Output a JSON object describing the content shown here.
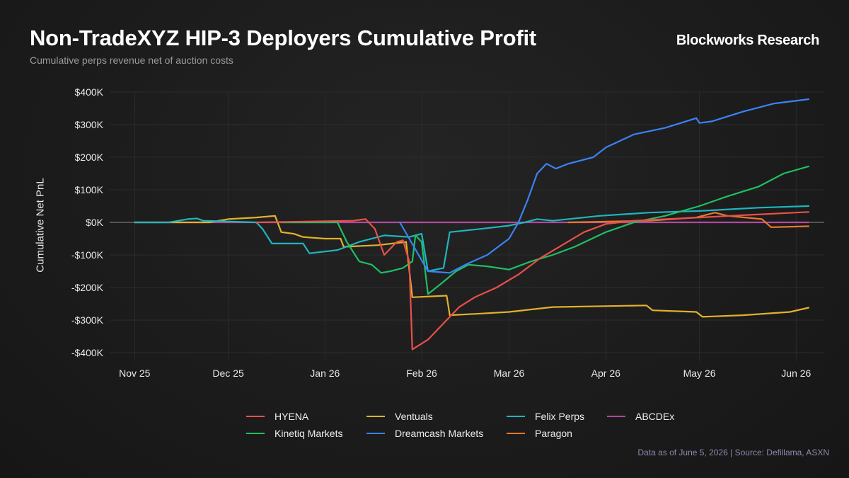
{
  "header": {
    "title": "Non-TradeXYZ HIP-3 Deployers Cumulative Profit",
    "subtitle": "Cumulative perps revenue net of auction costs",
    "brand": "Blockworks Research"
  },
  "footer": {
    "note": "Data as of June 5, 2026 | Source: Defillama, ASXN"
  },
  "chart_data": {
    "type": "line",
    "title": "Non-TradeXYZ HIP-3 Deployers Cumulative Profit",
    "subtitle": "Cumulative perps revenue net of auction costs",
    "xlabel": "",
    "ylabel": "Cumulative Net PnL",
    "ylim": [
      -400000,
      400000
    ],
    "yticks": [
      400000,
      300000,
      200000,
      100000,
      0,
      -100000,
      -200000,
      -300000,
      -400000
    ],
    "ytick_labels": [
      "$400K",
      "$300K",
      "$200K",
      "$100K",
      "$0K",
      "-$100K",
      "-$200K",
      "-$300K",
      "-$400K"
    ],
    "xlim": [
      "2025-10-24",
      "2026-06-10"
    ],
    "xticks": [
      "2025-11-01",
      "2025-12-01",
      "2026-01-01",
      "2026-02-01",
      "2026-03-01",
      "2026-04-01",
      "2026-05-01",
      "2026-06-01"
    ],
    "xtick_labels": [
      "Nov 25",
      "Dec 25",
      "Jan 26",
      "Feb 26",
      "Mar 26",
      "Apr 26",
      "May 26",
      "Jun 26"
    ],
    "grid": true,
    "zero_line": true,
    "legend_position": "bottom",
    "series": [
      {
        "name": "HYENA",
        "color": "#e8504a",
        "points": [
          [
            "2025-12-10",
            0
          ],
          [
            "2026-01-10",
            5000
          ],
          [
            "2026-01-14",
            10000
          ],
          [
            "2026-01-17",
            -20000
          ],
          [
            "2026-01-20",
            -100000
          ],
          [
            "2026-01-24",
            -60000
          ],
          [
            "2026-01-26",
            -55000
          ],
          [
            "2026-01-28",
            -120000
          ],
          [
            "2026-01-29",
            -390000
          ],
          [
            "2026-02-03",
            -360000
          ],
          [
            "2026-02-08",
            -310000
          ],
          [
            "2026-02-13",
            -260000
          ],
          [
            "2026-02-18",
            -230000
          ],
          [
            "2026-02-25",
            -200000
          ],
          [
            "2026-03-04",
            -160000
          ],
          [
            "2026-03-11",
            -110000
          ],
          [
            "2026-03-18",
            -70000
          ],
          [
            "2026-03-25",
            -30000
          ],
          [
            "2026-04-01",
            -5000
          ],
          [
            "2026-04-10",
            5000
          ],
          [
            "2026-05-01",
            15000
          ],
          [
            "2026-05-15",
            22000
          ],
          [
            "2026-06-01",
            30000
          ],
          [
            "2026-06-05",
            32000
          ]
        ]
      },
      {
        "name": "Ventuals",
        "color": "#e2b12a",
        "points": [
          [
            "2025-11-01",
            0
          ],
          [
            "2025-11-25",
            0
          ],
          [
            "2025-12-01",
            10000
          ],
          [
            "2025-12-10",
            15000
          ],
          [
            "2025-12-16",
            20000
          ],
          [
            "2025-12-18",
            -30000
          ],
          [
            "2025-12-22",
            -35000
          ],
          [
            "2025-12-25",
            -45000
          ],
          [
            "2026-01-01",
            -50000
          ],
          [
            "2026-01-06",
            -50000
          ],
          [
            "2026-01-07",
            -75000
          ],
          [
            "2026-01-18",
            -70000
          ],
          [
            "2026-01-27",
            -60000
          ],
          [
            "2026-01-29",
            -230000
          ],
          [
            "2026-02-09",
            -225000
          ],
          [
            "2026-02-10",
            -285000
          ],
          [
            "2026-02-20",
            -280000
          ],
          [
            "2026-03-01",
            -275000
          ],
          [
            "2026-03-15",
            -260000
          ],
          [
            "2026-04-14",
            -255000
          ],
          [
            "2026-04-16",
            -270000
          ],
          [
            "2026-04-30",
            -275000
          ],
          [
            "2026-05-02",
            -290000
          ],
          [
            "2026-05-15",
            -285000
          ],
          [
            "2026-05-30",
            -275000
          ],
          [
            "2026-06-05",
            -262000
          ]
        ]
      },
      {
        "name": "Felix Perps",
        "color": "#1fb5be",
        "points": [
          [
            "2025-11-01",
            0
          ],
          [
            "2025-11-12",
            0
          ],
          [
            "2025-11-18",
            10000
          ],
          [
            "2025-11-21",
            12000
          ],
          [
            "2025-11-23",
            5000
          ],
          [
            "2025-12-10",
            0
          ],
          [
            "2025-12-12",
            -20000
          ],
          [
            "2025-12-15",
            -65000
          ],
          [
            "2025-12-25",
            -65000
          ],
          [
            "2025-12-27",
            -95000
          ],
          [
            "2026-01-05",
            -85000
          ],
          [
            "2026-01-12",
            -60000
          ],
          [
            "2026-01-20",
            -40000
          ],
          [
            "2026-01-28",
            -45000
          ],
          [
            "2026-02-01",
            -35000
          ],
          [
            "2026-02-03",
            -150000
          ],
          [
            "2026-02-08",
            -140000
          ],
          [
            "2026-02-10",
            -30000
          ],
          [
            "2026-02-20",
            -20000
          ],
          [
            "2026-03-01",
            -10000
          ],
          [
            "2026-03-06",
            0
          ],
          [
            "2026-03-10",
            10000
          ],
          [
            "2026-03-15",
            5000
          ],
          [
            "2026-03-30",
            20000
          ],
          [
            "2026-04-15",
            30000
          ],
          [
            "2026-05-01",
            35000
          ],
          [
            "2026-05-20",
            45000
          ],
          [
            "2026-06-05",
            50000
          ]
        ]
      },
      {
        "name": "ABCDEx",
        "color": "#b04a9e",
        "points": [
          [
            "2025-11-01",
            0
          ],
          [
            "2026-06-05",
            0
          ]
        ]
      },
      {
        "name": "Kinetiq Markets",
        "color": "#1fbf62",
        "points": [
          [
            "2025-12-18",
            0
          ],
          [
            "2026-01-05",
            0
          ],
          [
            "2026-01-08",
            -60000
          ],
          [
            "2026-01-12",
            -120000
          ],
          [
            "2026-01-16",
            -130000
          ],
          [
            "2026-01-19",
            -155000
          ],
          [
            "2026-01-22",
            -150000
          ],
          [
            "2026-01-26",
            -140000
          ],
          [
            "2026-01-29",
            -120000
          ],
          [
            "2026-01-30",
            -40000
          ],
          [
            "2026-02-01",
            -60000
          ],
          [
            "2026-02-03",
            -220000
          ],
          [
            "2026-02-07",
            -190000
          ],
          [
            "2026-02-12",
            -150000
          ],
          [
            "2026-02-16",
            -130000
          ],
          [
            "2026-02-22",
            -135000
          ],
          [
            "2026-03-01",
            -145000
          ],
          [
            "2026-03-08",
            -120000
          ],
          [
            "2026-03-15",
            -100000
          ],
          [
            "2026-03-22",
            -75000
          ],
          [
            "2026-04-01",
            -30000
          ],
          [
            "2026-04-10",
            0
          ],
          [
            "2026-04-20",
            20000
          ],
          [
            "2026-05-01",
            50000
          ],
          [
            "2026-05-10",
            80000
          ],
          [
            "2026-05-20",
            110000
          ],
          [
            "2026-05-28",
            150000
          ],
          [
            "2026-06-05",
            172000
          ]
        ]
      },
      {
        "name": "Dreamcash Markets",
        "color": "#3b82f6",
        "points": [
          [
            "2026-01-25",
            0
          ],
          [
            "2026-02-03",
            -150000
          ],
          [
            "2026-02-10",
            -155000
          ],
          [
            "2026-02-15",
            -130000
          ],
          [
            "2026-02-22",
            -100000
          ],
          [
            "2026-03-01",
            -50000
          ],
          [
            "2026-03-04",
            0
          ],
          [
            "2026-03-07",
            70000
          ],
          [
            "2026-03-10",
            150000
          ],
          [
            "2026-03-13",
            180000
          ],
          [
            "2026-03-16",
            165000
          ],
          [
            "2026-03-20",
            180000
          ],
          [
            "2026-03-28",
            200000
          ],
          [
            "2026-04-01",
            230000
          ],
          [
            "2026-04-10",
            270000
          ],
          [
            "2026-04-20",
            290000
          ],
          [
            "2026-04-30",
            320000
          ],
          [
            "2026-05-01",
            305000
          ],
          [
            "2026-05-05",
            310000
          ],
          [
            "2026-05-15",
            340000
          ],
          [
            "2026-05-25",
            365000
          ],
          [
            "2026-06-05",
            378000
          ]
        ]
      },
      {
        "name": "Paragon",
        "color": "#e8772a",
        "points": [
          [
            "2026-03-20",
            0
          ],
          [
            "2026-04-15",
            5000
          ],
          [
            "2026-04-30",
            15000
          ],
          [
            "2026-05-06",
            30000
          ],
          [
            "2026-05-10",
            20000
          ],
          [
            "2026-05-21",
            10000
          ],
          [
            "2026-05-24",
            -15000
          ],
          [
            "2026-06-05",
            -12000
          ]
        ]
      }
    ]
  }
}
